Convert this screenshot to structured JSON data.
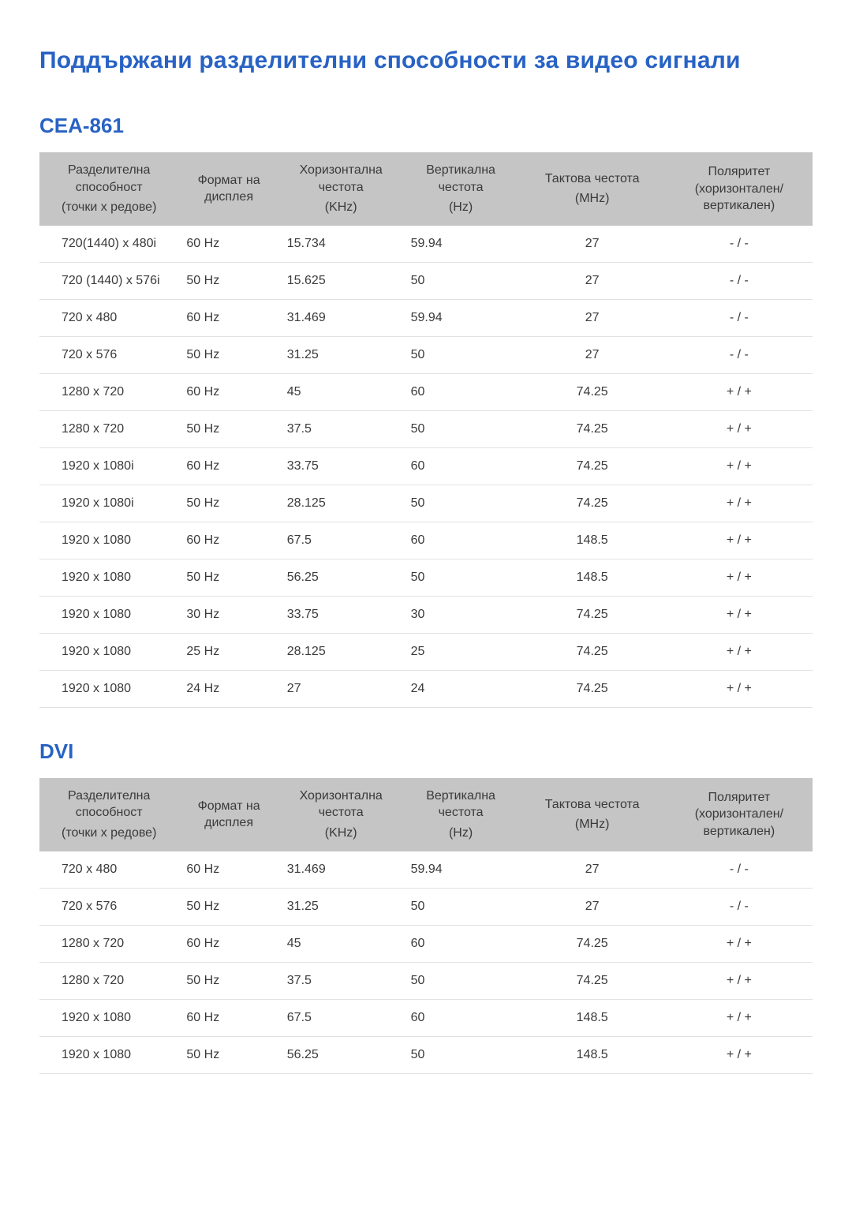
{
  "page": {
    "title": "Поддържани разделителни способности за видео сигнали",
    "title_color": "#2862c4",
    "text_color": "#3a3a3a",
    "header_bg": "#c5c5c5",
    "row_border": "#e2e2e2",
    "font_family": "Arial",
    "body_bg": "#ffffff"
  },
  "columns": [
    {
      "line1": "Разделителна способност",
      "line2": "(точки x редове)",
      "align": "left",
      "width_pct": 18
    },
    {
      "line1": "Формат на дисплея",
      "line2": "",
      "align": "left",
      "width_pct": 13
    },
    {
      "line1": "Хоризонтална честота",
      "line2": "(KHz)",
      "align": "left",
      "width_pct": 16
    },
    {
      "line1": "Вертикална честота",
      "line2": "(Hz)",
      "align": "left",
      "width_pct": 15
    },
    {
      "line1": "Тактова честота",
      "line2": "(MHz)",
      "align": "center",
      "width_pct": 19
    },
    {
      "line1": "Поляритет (хоризонтален/ вертикален)",
      "line2": "",
      "align": "center",
      "width_pct": 19
    }
  ],
  "sections": [
    {
      "title": "CEA-861",
      "rows": [
        [
          "720(1440) x 480i",
          "60 Hz",
          "15.734",
          "59.94",
          "27",
          "- / -"
        ],
        [
          "720 (1440) x 576i",
          "50 Hz",
          "15.625",
          "50",
          "27",
          "- / -"
        ],
        [
          "720 x 480",
          "60 Hz",
          "31.469",
          "59.94",
          "27",
          "- / -"
        ],
        [
          "720 x 576",
          "50 Hz",
          "31.25",
          "50",
          "27",
          "- / -"
        ],
        [
          "1280 x 720",
          "60 Hz",
          "45",
          "60",
          "74.25",
          "+ / +"
        ],
        [
          "1280 x 720",
          "50 Hz",
          "37.5",
          "50",
          "74.25",
          "+ / +"
        ],
        [
          "1920 x 1080i",
          "60 Hz",
          "33.75",
          "60",
          "74.25",
          "+ / +"
        ],
        [
          "1920 x 1080i",
          "50 Hz",
          "28.125",
          "50",
          "74.25",
          "+ / +"
        ],
        [
          "1920 x 1080",
          "60 Hz",
          "67.5",
          "60",
          "148.5",
          "+ / +"
        ],
        [
          "1920 x 1080",
          "50 Hz",
          "56.25",
          "50",
          "148.5",
          "+ / +"
        ],
        [
          "1920 x 1080",
          "30 Hz",
          "33.75",
          "30",
          "74.25",
          "+ / +"
        ],
        [
          "1920 x 1080",
          "25 Hz",
          "28.125",
          "25",
          "74.25",
          "+ / +"
        ],
        [
          "1920 x 1080",
          "24 Hz",
          "27",
          "24",
          "74.25",
          "+ / +"
        ]
      ]
    },
    {
      "title": "DVI",
      "rows": [
        [
          "720 x 480",
          "60 Hz",
          "31.469",
          "59.94",
          "27",
          "- / -"
        ],
        [
          "720 x 576",
          "50 Hz",
          "31.25",
          "50",
          "27",
          "- / -"
        ],
        [
          "1280 x 720",
          "60 Hz",
          "45",
          "60",
          "74.25",
          "+ / +"
        ],
        [
          "1280 x 720",
          "50 Hz",
          "37.5",
          "50",
          "74.25",
          "+ / +"
        ],
        [
          "1920 x 1080",
          "60 Hz",
          "67.5",
          "60",
          "148.5",
          "+ / +"
        ],
        [
          "1920 x 1080",
          "50 Hz",
          "56.25",
          "50",
          "148.5",
          "+ / +"
        ]
      ]
    }
  ]
}
